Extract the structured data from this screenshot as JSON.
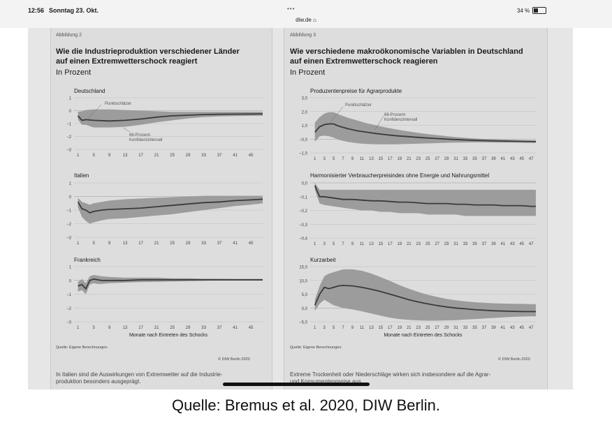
{
  "status_bar": {
    "time": "12:56",
    "date": "Sonntag 23. Okt.",
    "dots": "•••",
    "url": "diw.de ⌂",
    "battery": "34 %",
    "battery_level": 0.34
  },
  "left_figure": {
    "number": "Abbildung 2",
    "title_line1": "Wie die Industrieproduktion verschiedener Länder",
    "title_line2": "auf einen Extremwetterschock reagiert",
    "subtitle": "In Prozent",
    "source": "Quelle: Eigene Berechnungen.",
    "copyright": "© DIW Berlin 2020",
    "caption_line1": "In Italien sind die Auswirkungen von Extremwetter auf die Industrie-",
    "caption_line2": "produktion besonders ausgeprägt."
  },
  "right_figure": {
    "number": "Abbildung 3",
    "title_line1": "Wie verschiedene makroökonomische Variablen in Deutschland",
    "title_line2": "auf einen Extremwetterschock reagieren",
    "subtitle": "In Prozent",
    "source": "Quelle: Eigene Berechnungen.",
    "copyright": "© DIW Berlin 2020",
    "caption_line1": "Extreme Trockenheit oder Niederschläge wirken sich insbesondere auf die Agrar-",
    "caption_line2": "und Konsumentenpreise aus."
  },
  "footer": {
    "quelle": "Quelle: Bremus et al. 2020, DIW Berlin."
  },
  "chart_data": [
    {
      "type": "area",
      "title": "Deutschland",
      "xlabel": "",
      "xlim": [
        0,
        48
      ],
      "ylim": [
        -3,
        1
      ],
      "yticks": [
        1,
        0,
        -1,
        -2,
        -3
      ],
      "ytick_labels": [
        "1",
        "0",
        "−1",
        "−2",
        "−3"
      ],
      "xticks": [
        1,
        5,
        9,
        13,
        17,
        21,
        25,
        29,
        33,
        37,
        41,
        45
      ],
      "annotations": [
        "Punktschätzer",
        "68-Prozent-",
        "Konfidenzintervall"
      ],
      "x": [
        1,
        2,
        3,
        5,
        9,
        13,
        17,
        21,
        25,
        29,
        33,
        37,
        41,
        45,
        48
      ],
      "estimate": [
        -0.4,
        -0.75,
        -0.7,
        -0.75,
        -0.8,
        -0.75,
        -0.65,
        -0.5,
        -0.4,
        -0.35,
        -0.3,
        -0.28,
        -0.27,
        -0.26,
        -0.25
      ],
      "upper": [
        -0.1,
        -0.05,
        0.05,
        0.1,
        0.1,
        0.05,
        0.0,
        -0.05,
        -0.1,
        -0.1,
        -0.1,
        -0.1,
        -0.1,
        -0.1,
        -0.1
      ],
      "lower": [
        -0.7,
        -1.1,
        -1.1,
        -1.3,
        -1.3,
        -1.25,
        -1.1,
        -0.9,
        -0.75,
        -0.6,
        -0.5,
        -0.45,
        -0.42,
        -0.4,
        -0.4
      ],
      "grid": true
    },
    {
      "type": "area",
      "title": "Italien",
      "xlabel": "",
      "xlim": [
        0,
        48
      ],
      "ylim": [
        -3,
        1
      ],
      "yticks": [
        1,
        0,
        -1,
        -2,
        -3
      ],
      "ytick_labels": [
        "1",
        "0",
        "−1",
        "−2",
        "−3"
      ],
      "xticks": [
        1,
        5,
        9,
        13,
        17,
        21,
        25,
        29,
        33,
        37,
        41,
        45
      ],
      "x": [
        1,
        2,
        3,
        4,
        5,
        7,
        9,
        13,
        17,
        21,
        25,
        29,
        33,
        37,
        41,
        45,
        48
      ],
      "estimate": [
        -0.4,
        -0.9,
        -1.0,
        -1.2,
        -1.1,
        -1.0,
        -0.95,
        -0.9,
        -0.85,
        -0.75,
        -0.65,
        -0.55,
        -0.45,
        -0.4,
        -0.3,
        -0.25,
        -0.2
      ],
      "upper": [
        -0.1,
        -0.4,
        -0.5,
        -0.6,
        -0.5,
        -0.4,
        -0.3,
        -0.2,
        -0.15,
        -0.1,
        -0.05,
        0.0,
        0.05,
        0.05,
        0.05,
        0.05,
        0.05
      ],
      "lower": [
        -0.8,
        -1.5,
        -1.8,
        -2.0,
        -1.9,
        -1.75,
        -1.65,
        -1.6,
        -1.5,
        -1.4,
        -1.3,
        -1.15,
        -1.0,
        -0.85,
        -0.7,
        -0.6,
        -0.5
      ],
      "grid": true
    },
    {
      "type": "area",
      "title": "Frankreich",
      "xlabel": "Monate nach Eintreten des Schocks",
      "xlim": [
        0,
        48
      ],
      "ylim": [
        -3,
        1
      ],
      "yticks": [
        1,
        0,
        -1,
        -2,
        -3
      ],
      "ytick_labels": [
        "1",
        "0",
        "−1",
        "−2",
        "−3"
      ],
      "xticks": [
        1,
        5,
        9,
        13,
        17,
        21,
        25,
        29,
        33,
        37,
        41,
        45
      ],
      "x": [
        1,
        2,
        3,
        4,
        5,
        6,
        7,
        9,
        13,
        17,
        21,
        25,
        29,
        33,
        37,
        41,
        45,
        48
      ],
      "estimate": [
        -0.4,
        -0.3,
        -0.6,
        0.0,
        0.1,
        0.05,
        0.0,
        0.0,
        0.0,
        0.05,
        0.05,
        0.05,
        0.05,
        0.05,
        0.05,
        0.05,
        0.05,
        0.05
      ],
      "upper": [
        -0.1,
        0.1,
        -0.2,
        0.3,
        0.4,
        0.35,
        0.3,
        0.25,
        0.2,
        0.2,
        0.2,
        0.15,
        0.15,
        0.12,
        0.12,
        0.1,
        0.1,
        0.1
      ],
      "lower": [
        -0.8,
        -0.7,
        -1.0,
        -0.3,
        -0.2,
        -0.25,
        -0.25,
        -0.2,
        -0.15,
        -0.12,
        -0.1,
        -0.08,
        -0.05,
        -0.03,
        0.0,
        0.0,
        0.0,
        0.0
      ],
      "grid": true
    },
    {
      "type": "area",
      "title": "Produzentenpreise für Agrarprodukte",
      "xlabel": "",
      "xlim": [
        0,
        48
      ],
      "ylim": [
        -1,
        3
      ],
      "yticks": [
        3,
        2,
        1,
        0,
        -1
      ],
      "ytick_labels": [
        "3,0",
        "2,0",
        "1,0",
        "−0,0",
        "−1,0"
      ],
      "xticks": [
        1,
        3,
        5,
        7,
        9,
        11,
        13,
        15,
        17,
        19,
        21,
        23,
        25,
        27,
        29,
        31,
        33,
        35,
        37,
        39,
        41,
        43,
        45,
        47
      ],
      "annotations": [
        "Punktschätzer",
        "68-Prozent-",
        "Konfidenzintervall"
      ],
      "x": [
        1,
        2,
        3,
        4,
        5,
        6,
        8,
        10,
        12,
        14,
        16,
        18,
        20,
        22,
        24,
        26,
        28,
        30,
        32,
        34,
        36,
        38,
        40,
        42,
        44,
        46,
        48
      ],
      "estimate": [
        0.5,
        0.9,
        1.05,
        1.1,
        1.1,
        0.95,
        0.75,
        0.6,
        0.5,
        0.4,
        0.32,
        0.25,
        0.2,
        0.15,
        0.1,
        0.06,
        0.02,
        -0.02,
        -0.05,
        -0.08,
        -0.1,
        -0.12,
        -0.14,
        -0.15,
        -0.16,
        -0.17,
        -0.18
      ],
      "upper": [
        1.2,
        1.6,
        1.85,
        1.95,
        1.95,
        1.8,
        1.55,
        1.35,
        1.15,
        1.0,
        0.85,
        0.72,
        0.6,
        0.5,
        0.4,
        0.32,
        0.25,
        0.18,
        0.12,
        0.07,
        0.03,
        0.0,
        -0.03,
        -0.05,
        -0.07,
        -0.09,
        -0.1
      ],
      "lower": [
        -0.2,
        0.2,
        0.25,
        0.2,
        0.1,
        -0.05,
        -0.2,
        -0.3,
        -0.35,
        -0.38,
        -0.38,
        -0.38,
        -0.36,
        -0.34,
        -0.32,
        -0.3,
        -0.28,
        -0.26,
        -0.25,
        -0.24,
        -0.24,
        -0.24,
        -0.25,
        -0.25,
        -0.26,
        -0.27,
        -0.27
      ],
      "grid": true
    },
    {
      "type": "area",
      "title": "Harmonisierter Verbraucherpreisindex ohne Energie und Nahrungsmittel",
      "xlabel": "",
      "xlim": [
        0,
        48
      ],
      "ylim": [
        -0.4,
        0.0
      ],
      "yticks": [
        0,
        -0.1,
        -0.2,
        -0.3,
        -0.4
      ],
      "ytick_labels": [
        "0,0",
        "−0,1",
        "−0,2",
        "−0,3",
        "−0,4"
      ],
      "xticks": [
        1,
        3,
        5,
        7,
        9,
        11,
        13,
        15,
        17,
        19,
        21,
        23,
        25,
        27,
        29,
        31,
        33,
        35,
        37,
        39,
        41,
        43,
        45,
        47
      ],
      "x": [
        1,
        2,
        3,
        5,
        7,
        9,
        11,
        13,
        15,
        17,
        19,
        21,
        23,
        25,
        27,
        29,
        31,
        33,
        35,
        37,
        39,
        41,
        43,
        45,
        47,
        48
      ],
      "estimate": [
        -0.02,
        -0.1,
        -0.1,
        -0.11,
        -0.12,
        -0.12,
        -0.125,
        -0.13,
        -0.13,
        -0.135,
        -0.14,
        -0.14,
        -0.145,
        -0.15,
        -0.15,
        -0.15,
        -0.155,
        -0.155,
        -0.16,
        -0.16,
        -0.16,
        -0.165,
        -0.165,
        -0.165,
        -0.17,
        -0.17
      ],
      "upper": [
        0.0,
        -0.05,
        -0.05,
        -0.05,
        -0.05,
        -0.05,
        -0.05,
        -0.05,
        -0.05,
        -0.05,
        -0.05,
        -0.05,
        -0.05,
        -0.05,
        -0.05,
        -0.05,
        -0.05,
        -0.05,
        -0.05,
        -0.05,
        -0.05,
        -0.05,
        -0.05,
        -0.05,
        -0.05,
        -0.05
      ],
      "lower": [
        -0.05,
        -0.15,
        -0.16,
        -0.17,
        -0.18,
        -0.19,
        -0.2,
        -0.2,
        -0.21,
        -0.21,
        -0.22,
        -0.22,
        -0.22,
        -0.23,
        -0.23,
        -0.23,
        -0.23,
        -0.24,
        -0.24,
        -0.24,
        -0.24,
        -0.24,
        -0.24,
        -0.24,
        -0.24,
        -0.24
      ],
      "grid": true
    },
    {
      "type": "area",
      "title": "Kurzarbeit",
      "xlabel": "Monate nach Eintreten des Schocks",
      "xlim": [
        0,
        48
      ],
      "ylim": [
        -5,
        15
      ],
      "yticks": [
        15,
        10,
        5,
        0,
        -5
      ],
      "ytick_labels": [
        "15,0",
        "10,0",
        "5,0",
        "0,0",
        "−5,0"
      ],
      "xticks": [
        1,
        3,
        5,
        7,
        9,
        11,
        13,
        15,
        17,
        19,
        21,
        23,
        25,
        27,
        29,
        31,
        33,
        35,
        37,
        39,
        41,
        43,
        45,
        47
      ],
      "x": [
        1,
        2,
        3,
        4,
        5,
        6,
        7,
        9,
        11,
        13,
        15,
        17,
        19,
        21,
        23,
        25,
        27,
        29,
        31,
        33,
        35,
        37,
        39,
        41,
        43,
        45,
        47,
        48
      ],
      "estimate": [
        1.0,
        5.0,
        7.5,
        7.0,
        7.5,
        8.0,
        8.2,
        8.0,
        7.5,
        6.8,
        6.0,
        5.0,
        4.0,
        3.0,
        2.2,
        1.5,
        0.9,
        0.4,
        0.0,
        -0.3,
        -0.6,
        -0.8,
        -1.0,
        -1.1,
        -1.2,
        -1.3,
        -1.3,
        -1.3
      ],
      "upper": [
        3.0,
        8.0,
        11.5,
        12.5,
        13.0,
        13.5,
        14.0,
        14.0,
        13.5,
        12.5,
        11.2,
        9.8,
        8.3,
        7.0,
        5.8,
        4.8,
        4.0,
        3.3,
        2.8,
        2.4,
        2.1,
        1.9,
        1.7,
        1.6,
        1.5,
        1.5,
        1.4,
        1.4
      ],
      "lower": [
        -1.0,
        1.5,
        3.0,
        2.0,
        1.0,
        0.5,
        0.0,
        -0.5,
        -1.2,
        -2.0,
        -2.8,
        -3.5,
        -4.0,
        -4.3,
        -4.5,
        -4.6,
        -4.6,
        -4.5,
        -4.4,
        -4.2,
        -4.0,
        -3.8,
        -3.6,
        -3.4,
        -3.2,
        -3.1,
        -3.0,
        -3.0
      ],
      "grid": true
    }
  ]
}
